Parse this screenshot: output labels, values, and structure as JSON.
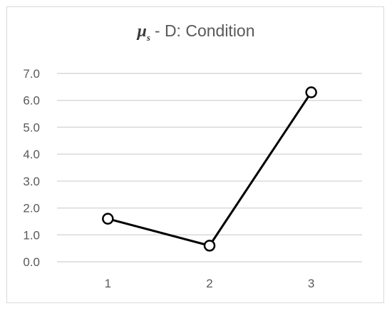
{
  "chart_data": {
    "type": "line",
    "title": {
      "symbol": "μ",
      "subscript": "s",
      "text": "- D: Condition"
    },
    "categories": [
      "1",
      "2",
      "3"
    ],
    "series": [
      {
        "values": [
          1.6,
          0.6,
          6.3
        ]
      }
    ],
    "ylim": [
      0,
      7
    ],
    "yticks": [
      "0.0",
      "1.0",
      "2.0",
      "3.0",
      "4.0",
      "5.0",
      "6.0",
      "7.0"
    ],
    "grid": true,
    "legend": "none",
    "colors": {
      "line": "#000000",
      "marker_fill": "#ffffff",
      "grid": "#d9d9d9",
      "tick_label": "#595959"
    }
  }
}
